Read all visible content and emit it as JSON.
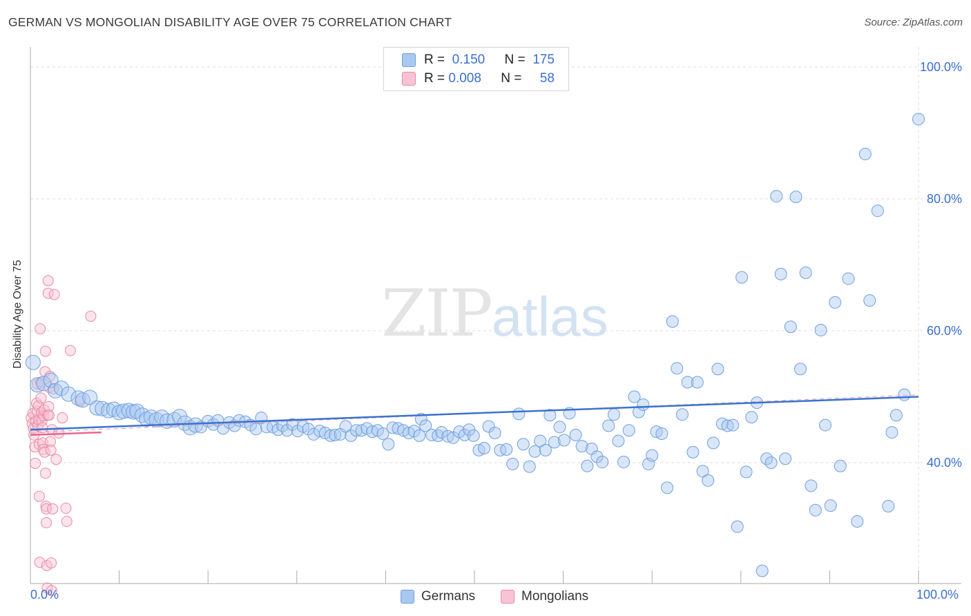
{
  "title": "GERMAN VS MONGOLIAN DISABILITY AGE OVER 75 CORRELATION CHART",
  "source": "Source: ZipAtlas.com",
  "watermark": {
    "zip": "ZIP",
    "atlas": "atlas"
  },
  "legend_stats": [
    {
      "r_label": "R =",
      "r_value": "0.150",
      "n_label": "N =",
      "n_value": "175",
      "color": "#a9c8f0",
      "border": "#6f9fe0"
    },
    {
      "r_label": "R =",
      "r_value": "0.008",
      "n_label": "N =",
      "n_value": "58",
      "color": "#f8c3d3",
      "border": "#e88aa8"
    }
  ],
  "legend_bottom": [
    {
      "label": "Germans",
      "color": "#a9c8f0",
      "border": "#6f9fe0"
    },
    {
      "label": "Mongolians",
      "color": "#f8c3d3",
      "border": "#e88aa8"
    }
  ],
  "colors": {
    "blue_line": "#3a72d0",
    "pink_line": "#e8668f",
    "accent_text": "#3a6fd0",
    "grid": "#dddddd"
  },
  "chart_data": {
    "type": "scatter",
    "title": "GERMAN VS MONGOLIAN DISABILITY AGE OVER 75 CORRELATION CHART",
    "xlabel": "",
    "ylabel": "Disability Age Over 75",
    "xlim": [
      0,
      100
    ],
    "ylim": [
      22,
      102
    ],
    "x_tick_labels": [
      "0.0%",
      "100.0%"
    ],
    "y_tick_labels": [
      {
        "value": 100,
        "label": "100.0%"
      },
      {
        "value": 80,
        "label": "80.0%"
      },
      {
        "value": 60,
        "label": "60.0%"
      },
      {
        "value": 40,
        "label": "40.0%"
      }
    ],
    "grid": true,
    "legend_position": "top-center",
    "series": [
      {
        "name": "Germans",
        "color": "#a9c8f0",
        "trend": {
          "x": [
            0,
            100
          ],
          "y": [
            45.0,
            50.0
          ]
        },
        "points": [
          [
            0.3,
            55.2
          ],
          [
            0.8,
            51.8
          ],
          [
            1.5,
            52.0
          ],
          [
            2.3,
            52.5
          ],
          [
            2.8,
            50.9
          ],
          [
            3.5,
            51.3
          ],
          [
            4.3,
            50.4
          ],
          [
            5.4,
            49.8
          ],
          [
            5.9,
            49.5
          ],
          [
            6.7,
            49.9
          ],
          [
            7.5,
            48.3
          ],
          [
            8.1,
            48.2
          ],
          [
            8.8,
            47.9
          ],
          [
            9.4,
            48.1
          ],
          [
            10.0,
            47.6
          ],
          [
            10.5,
            47.8
          ],
          [
            11.1,
            47.9
          ],
          [
            11.6,
            47.7
          ],
          [
            12.0,
            47.8
          ],
          [
            12.6,
            47.2
          ],
          [
            13.1,
            46.6
          ],
          [
            13.6,
            46.9
          ],
          [
            14.2,
            46.5
          ],
          [
            14.8,
            46.9
          ],
          [
            15.4,
            46.3
          ],
          [
            16.2,
            46.5
          ],
          [
            16.8,
            47.0
          ],
          [
            17.4,
            46.0
          ],
          [
            18.0,
            45.3
          ],
          [
            18.6,
            45.7
          ],
          [
            19.2,
            45.4
          ],
          [
            20.0,
            46.3
          ],
          [
            20.6,
            45.8
          ],
          [
            21.1,
            46.4
          ],
          [
            21.7,
            45.2
          ],
          [
            22.4,
            46.1
          ],
          [
            23.0,
            45.6
          ],
          [
            23.5,
            46.4
          ],
          [
            24.2,
            46.2
          ],
          [
            24.8,
            45.7
          ],
          [
            25.4,
            45.1
          ],
          [
            26.0,
            46.8
          ],
          [
            26.6,
            45.4
          ],
          [
            27.3,
            45.4
          ],
          [
            27.9,
            45.0
          ],
          [
            28.4,
            45.6
          ],
          [
            28.9,
            44.9
          ],
          [
            29.5,
            45.8
          ],
          [
            30.1,
            44.8
          ],
          [
            30.7,
            45.5
          ],
          [
            31.3,
            45.1
          ],
          [
            31.9,
            44.3
          ],
          [
            32.6,
            44.8
          ],
          [
            33.2,
            44.5
          ],
          [
            33.8,
            44.1
          ],
          [
            34.3,
            44.2
          ],
          [
            34.9,
            44.3
          ],
          [
            35.5,
            45.5
          ],
          [
            36.1,
            44.1
          ],
          [
            36.7,
            44.9
          ],
          [
            37.3,
            44.9
          ],
          [
            37.9,
            45.2
          ],
          [
            38.5,
            44.7
          ],
          [
            39.1,
            44.9
          ],
          [
            39.7,
            44.4
          ],
          [
            40.3,
            42.8
          ],
          [
            40.8,
            45.3
          ],
          [
            41.4,
            45.2
          ],
          [
            42.0,
            44.9
          ],
          [
            42.6,
            44.5
          ],
          [
            43.2,
            44.8
          ],
          [
            43.8,
            44.1
          ],
          [
            44.0,
            46.6
          ],
          [
            44.5,
            45.6
          ],
          [
            45.2,
            44.2
          ],
          [
            45.9,
            44.1
          ],
          [
            46.3,
            44.6
          ],
          [
            47.0,
            44.0
          ],
          [
            47.6,
            43.8
          ],
          [
            48.3,
            44.7
          ],
          [
            48.9,
            44.2
          ],
          [
            49.4,
            45.0
          ],
          [
            49.9,
            44.1
          ],
          [
            50.5,
            41.9
          ],
          [
            51.1,
            42.2
          ],
          [
            51.6,
            45.5
          ],
          [
            52.3,
            44.5
          ],
          [
            52.9,
            41.9
          ],
          [
            53.6,
            42.0
          ],
          [
            54.3,
            39.8
          ],
          [
            55.0,
            47.4
          ],
          [
            55.5,
            42.8
          ],
          [
            56.2,
            39.4
          ],
          [
            56.8,
            41.7
          ],
          [
            57.4,
            43.3
          ],
          [
            58.0,
            41.9
          ],
          [
            58.5,
            47.2
          ],
          [
            59.0,
            43.1
          ],
          [
            59.6,
            45.4
          ],
          [
            60.1,
            43.4
          ],
          [
            60.7,
            47.5
          ],
          [
            61.4,
            44.2
          ],
          [
            62.1,
            42.5
          ],
          [
            62.7,
            39.5
          ],
          [
            63.2,
            42.1
          ],
          [
            63.8,
            40.9
          ],
          [
            64.4,
            40.1
          ],
          [
            65.1,
            45.6
          ],
          [
            65.7,
            47.3
          ],
          [
            66.2,
            43.3
          ],
          [
            66.8,
            40.1
          ],
          [
            67.4,
            44.9
          ],
          [
            68.0,
            50.0
          ],
          [
            68.5,
            47.7
          ],
          [
            69.0,
            48.8
          ],
          [
            69.6,
            39.8
          ],
          [
            70.0,
            41.1
          ],
          [
            70.5,
            44.7
          ],
          [
            71.1,
            44.4
          ],
          [
            71.7,
            36.2
          ],
          [
            72.3,
            61.4
          ],
          [
            72.8,
            54.3
          ],
          [
            73.4,
            47.3
          ],
          [
            74.0,
            52.2
          ],
          [
            74.6,
            41.6
          ],
          [
            75.1,
            52.2
          ],
          [
            75.7,
            38.7
          ],
          [
            76.3,
            37.3
          ],
          [
            76.9,
            43.0
          ],
          [
            77.4,
            54.2
          ],
          [
            77.9,
            45.9
          ],
          [
            78.5,
            45.6
          ],
          [
            79.1,
            45.7
          ],
          [
            79.6,
            30.3
          ],
          [
            80.1,
            68.1
          ],
          [
            80.6,
            38.6
          ],
          [
            81.2,
            46.9
          ],
          [
            81.8,
            49.1
          ],
          [
            82.4,
            23.6
          ],
          [
            82.9,
            40.6
          ],
          [
            83.4,
            40.0
          ],
          [
            84.0,
            80.4
          ],
          [
            84.5,
            68.6
          ],
          [
            85.0,
            40.6
          ],
          [
            85.6,
            60.6
          ],
          [
            86.2,
            80.3
          ],
          [
            86.7,
            54.2
          ],
          [
            87.3,
            68.8
          ],
          [
            87.9,
            36.5
          ],
          [
            88.4,
            32.8
          ],
          [
            89.0,
            60.1
          ],
          [
            89.5,
            45.7
          ],
          [
            90.1,
            33.5
          ],
          [
            90.6,
            64.3
          ],
          [
            91.2,
            39.5
          ],
          [
            92.1,
            67.9
          ],
          [
            93.1,
            31.1
          ],
          [
            94.0,
            86.8
          ],
          [
            94.5,
            64.6
          ],
          [
            95.4,
            78.2
          ],
          [
            96.6,
            33.4
          ],
          [
            97.0,
            44.6
          ],
          [
            97.5,
            47.2
          ],
          [
            98.4,
            50.3
          ],
          [
            100.0,
            92.1
          ]
        ]
      },
      {
        "name": "Mongolians",
        "color": "#f8c3d3",
        "trend": {
          "x": [
            0,
            8
          ],
          "y": [
            44.2,
            44.6
          ]
        },
        "points": [
          [
            0.1,
            46.8
          ],
          [
            0.2,
            45.9
          ],
          [
            0.3,
            47.5
          ],
          [
            0.35,
            45.2
          ],
          [
            0.4,
            44.2
          ],
          [
            0.5,
            42.4
          ],
          [
            0.55,
            39.9
          ],
          [
            0.6,
            46.3
          ],
          [
            0.7,
            49.0
          ],
          [
            0.75,
            47.8
          ],
          [
            0.8,
            51.9
          ],
          [
            0.85,
            45.6
          ],
          [
            0.9,
            48.6
          ],
          [
            0.95,
            46.5
          ],
          [
            1.0,
            42.8
          ],
          [
            1.0,
            34.9
          ],
          [
            1.05,
            24.9
          ],
          [
            1.1,
            60.3
          ],
          [
            1.15,
            52.2
          ],
          [
            1.2,
            49.8
          ],
          [
            1.25,
            47.6
          ],
          [
            1.3,
            46.4
          ],
          [
            1.35,
            45.3
          ],
          [
            1.4,
            43.0
          ],
          [
            1.45,
            42.0
          ],
          [
            1.5,
            47.1
          ],
          [
            1.55,
            48.0
          ],
          [
            1.6,
            41.6
          ],
          [
            1.65,
            53.8
          ],
          [
            1.7,
            56.9
          ],
          [
            1.7,
            38.4
          ],
          [
            1.75,
            33.4
          ],
          [
            1.8,
            33.0
          ],
          [
            1.8,
            30.9
          ],
          [
            1.85,
            24.4
          ],
          [
            1.9,
            21.0
          ],
          [
            1.95,
            47.2
          ],
          [
            2.0,
            67.6
          ],
          [
            2.0,
            65.7
          ],
          [
            2.05,
            48.5
          ],
          [
            2.1,
            47.2
          ],
          [
            2.15,
            51.4
          ],
          [
            2.2,
            53.1
          ],
          [
            2.25,
            43.2
          ],
          [
            2.3,
            41.9
          ],
          [
            2.35,
            24.8
          ],
          [
            2.4,
            20.6
          ],
          [
            2.45,
            45.0
          ],
          [
            2.5,
            33.0
          ],
          [
            2.6,
            51.2
          ],
          [
            2.7,
            65.5
          ],
          [
            2.9,
            40.5
          ],
          [
            3.2,
            44.5
          ],
          [
            3.6,
            46.8
          ],
          [
            4.0,
            33.1
          ],
          [
            4.1,
            31.1
          ],
          [
            4.5,
            57.0
          ],
          [
            5.6,
            49.3
          ],
          [
            6.8,
            62.2
          ]
        ]
      }
    ]
  }
}
